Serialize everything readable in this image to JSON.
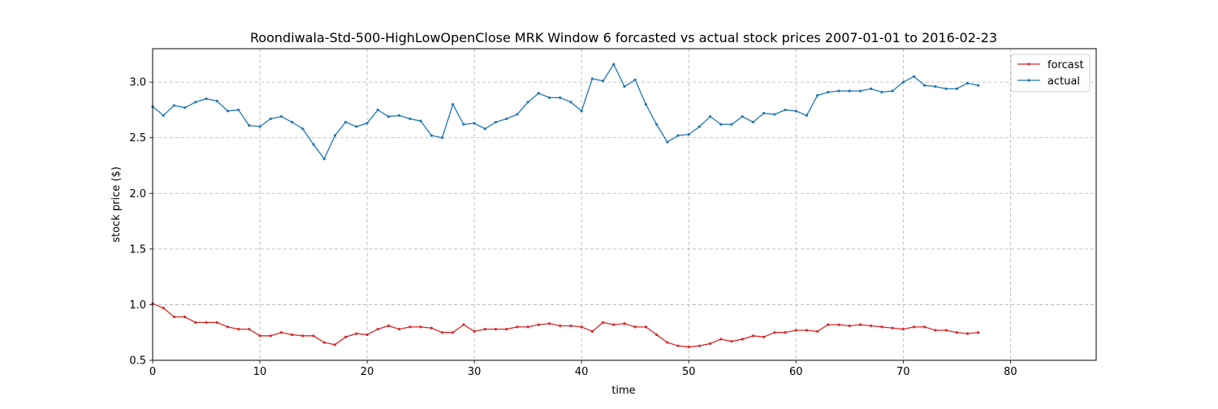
{
  "chart_data": {
    "type": "line",
    "title": "Roondiwala-Std-500-HighLowOpenClose MRK Window 6 forcasted vs actual stock prices 2007-01-01 to 2016-02-23",
    "xlabel": "time",
    "ylabel": "stock price ($)",
    "xlim": [
      0,
      88
    ],
    "ylim": [
      0.5,
      3.3
    ],
    "x_ticks": [
      0,
      10,
      20,
      30,
      40,
      50,
      60,
      70,
      80
    ],
    "y_ticks": [
      0.5,
      1.0,
      1.5,
      2.0,
      2.5,
      3.0
    ],
    "x_tick_labels": [
      "0",
      "10",
      "20",
      "30",
      "40",
      "50",
      "60",
      "70",
      "80"
    ],
    "y_tick_labels": [
      "0.5",
      "1.0",
      "1.5",
      "2.0",
      "2.5",
      "3.0"
    ],
    "grid": true,
    "legend_position": "top-right",
    "series": [
      {
        "name": "forcast",
        "color": "#d62728",
        "values": [
          1.01,
          0.97,
          0.89,
          0.89,
          0.84,
          0.84,
          0.84,
          0.8,
          0.78,
          0.78,
          0.72,
          0.72,
          0.75,
          0.73,
          0.72,
          0.72,
          0.66,
          0.64,
          0.71,
          0.74,
          0.73,
          0.78,
          0.81,
          0.78,
          0.8,
          0.8,
          0.79,
          0.75,
          0.75,
          0.82,
          0.76,
          0.78,
          0.78,
          0.78,
          0.8,
          0.8,
          0.82,
          0.83,
          0.81,
          0.81,
          0.8,
          0.76,
          0.84,
          0.82,
          0.83,
          0.8,
          0.8,
          0.73,
          0.66,
          0.63,
          0.62,
          0.63,
          0.65,
          0.69,
          0.67,
          0.69,
          0.72,
          0.71,
          0.75,
          0.75,
          0.77,
          0.77,
          0.76,
          0.82,
          0.82,
          0.81,
          0.82,
          0.81,
          0.8,
          0.79,
          0.78,
          0.8,
          0.8,
          0.77,
          0.77,
          0.75,
          0.74,
          0.75
        ]
      },
      {
        "name": "actual",
        "color": "#1f77b4",
        "values": [
          2.78,
          2.7,
          2.79,
          2.77,
          2.82,
          2.85,
          2.83,
          2.74,
          2.75,
          2.61,
          2.6,
          2.67,
          2.69,
          2.64,
          2.58,
          2.44,
          2.31,
          2.52,
          2.64,
          2.6,
          2.63,
          2.75,
          2.69,
          2.7,
          2.67,
          2.65,
          2.52,
          2.5,
          2.8,
          2.62,
          2.63,
          2.58,
          2.64,
          2.67,
          2.71,
          2.82,
          2.9,
          2.86,
          2.86,
          2.82,
          2.74,
          3.03,
          3.01,
          3.16,
          2.96,
          3.02,
          2.8,
          2.62,
          2.46,
          2.52,
          2.53,
          2.6,
          2.69,
          2.62,
          2.62,
          2.69,
          2.64,
          2.72,
          2.71,
          2.75,
          2.74,
          2.7,
          2.88,
          2.91,
          2.92,
          2.92,
          2.92,
          2.94,
          2.91,
          2.92,
          3.0,
          3.05,
          2.97,
          2.96,
          2.94,
          2.94,
          2.99,
          2.97
        ]
      }
    ]
  }
}
